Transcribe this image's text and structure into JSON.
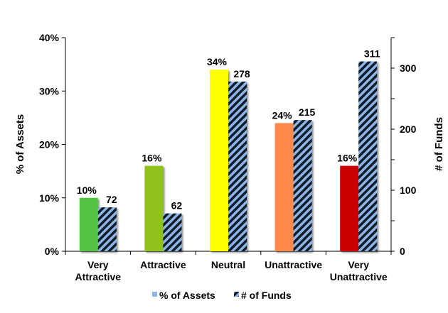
{
  "chart_data": {
    "type": "bar",
    "categories": [
      [
        "Very",
        "Attractive"
      ],
      [
        "Attractive"
      ],
      [
        "Neutral"
      ],
      [
        "Unattractive"
      ],
      [
        "Very",
        "Unattractive"
      ]
    ],
    "series": [
      {
        "name": "% of Assets",
        "axis": "left",
        "values": [
          10,
          16,
          34,
          24,
          16
        ],
        "labels": [
          "10%",
          "16%",
          "34%",
          "24%",
          "16%"
        ],
        "colors": [
          "#55c445",
          "#8fc31f",
          "#ffff00",
          "#ff8a4c",
          "#cc0000"
        ]
      },
      {
        "name": "# of Funds",
        "axis": "right",
        "values": [
          72,
          62,
          278,
          215,
          311
        ],
        "labels": [
          "72",
          "62",
          "278",
          "215",
          "311"
        ],
        "fill_pattern": "diagonal-stripes",
        "colors": [
          "#8fb4e3",
          "#0d1b2a"
        ]
      }
    ],
    "ylabel": "% of Assets",
    "y2label": "# of Funds",
    "ylim": [
      0,
      40
    ],
    "y2lim": [
      0,
      350
    ],
    "yticks": [
      "0%",
      "10%",
      "20%",
      "30%",
      "40%"
    ],
    "y2ticks": [
      "0",
      "100",
      "200",
      "300"
    ],
    "legend": {
      "position": "bottom",
      "entries": [
        "% of Assets",
        "# of Funds"
      ]
    },
    "grid": false
  }
}
